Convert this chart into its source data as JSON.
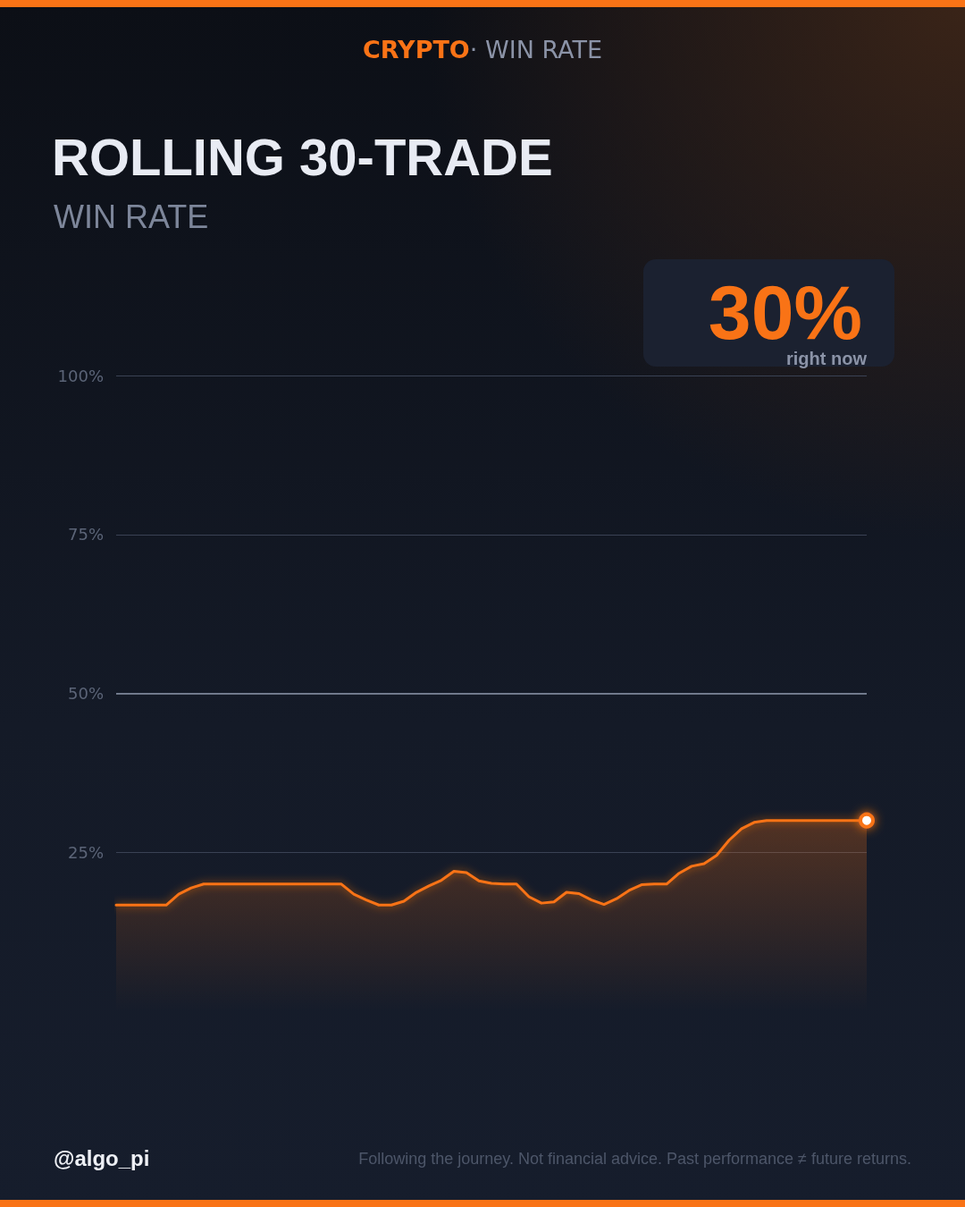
{
  "chart_data": {
    "type": "area",
    "title": "ROLLING 30-TRADE",
    "subtitle": "WIN RATE",
    "annotations": [
      "CRYPTO",
      "· WIN RATE",
      "30%",
      "right now",
      "@algo_pi",
      "Following the journey. Not financial advice. Past performance ≠ future returns."
    ],
    "categories": [
      null,
      null,
      null,
      null,
      null,
      null,
      null,
      null,
      null,
      null,
      null,
      null,
      null,
      null,
      null,
      null,
      null,
      null,
      null,
      null,
      null,
      null,
      null,
      null,
      null,
      null,
      null,
      null,
      null,
      null,
      null,
      null,
      null,
      null,
      null,
      null,
      null,
      null,
      null,
      null,
      null,
      null,
      null,
      null,
      null,
      null,
      null,
      null,
      null,
      null,
      null,
      null,
      null,
      null,
      null,
      null,
      null,
      null,
      null,
      null,
      null
    ],
    "series": [
      {
        "color": "#f97316",
        "values": [
          16.7,
          16.7,
          16.7,
          16.7,
          16.7,
          18.4,
          19.4,
          20,
          20,
          20,
          20,
          20,
          20,
          20,
          20,
          20,
          20,
          20,
          20,
          18.4,
          17.5,
          16.7,
          16.7,
          17.3,
          18.7,
          19.7,
          20.6,
          22,
          21.8,
          20.5,
          20.1,
          20,
          20,
          18,
          17,
          17.2,
          18.7,
          18.5,
          17.5,
          16.8,
          17.7,
          19,
          19.9,
          20,
          20,
          21.7,
          22.8,
          23.2,
          24.5,
          26.9,
          28.7,
          29.7,
          30,
          30,
          30,
          30,
          30,
          30,
          30,
          30,
          30
        ]
      }
    ],
    "ylim": [
      0,
      100
    ],
    "yticks": [
      {
        "value": 25,
        "label": "25%"
      },
      {
        "value": 50,
        "label": "50%"
      },
      {
        "value": 75,
        "label": "75%"
      },
      {
        "value": 100,
        "label": "100%"
      }
    ],
    "grid": "y",
    "ref_lines": [
      {
        "axis": "y",
        "value": 50,
        "label": null,
        "color": "#8a93a6"
      }
    ]
  }
}
